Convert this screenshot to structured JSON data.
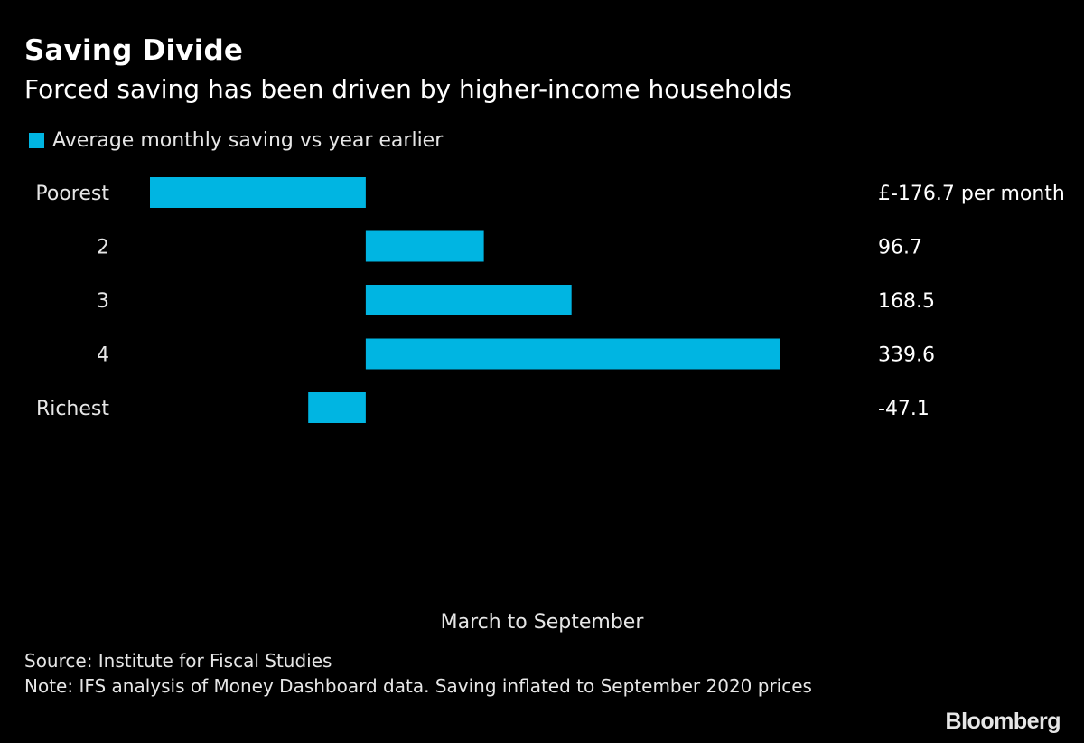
{
  "header": {
    "title": "Saving Divide",
    "subtitle": "Forced saving has been driven by higher-income households"
  },
  "legend": {
    "label": "Average monthly saving vs year earlier",
    "color": "#00b5e2"
  },
  "chart_data": {
    "type": "bar",
    "orientation": "horizontal",
    "categories": [
      "Poorest",
      "2",
      "3",
      "4",
      "Richest"
    ],
    "values": [
      -176.7,
      96.7,
      168.5,
      339.6,
      -47.1
    ],
    "value_labels": [
      "£-176.7 per month",
      "96.7",
      "168.5",
      "339.6",
      "-47.1"
    ],
    "series": [
      {
        "name": "Average monthly saving vs year earlier",
        "values": [
          -176.7,
          96.7,
          168.5,
          339.6,
          -47.1
        ]
      }
    ],
    "xlabel": "March to September",
    "xlim": [
      -176.7,
      339.6
    ],
    "grid": false,
    "legend_position": "top-left",
    "bar_color": "#00b5e2"
  },
  "footer": {
    "source": "Source: Institute for Fiscal Studies",
    "note": "Note: IFS analysis of Money Dashboard data. Saving inflated to September 2020 prices"
  },
  "brand": "Bloomberg"
}
